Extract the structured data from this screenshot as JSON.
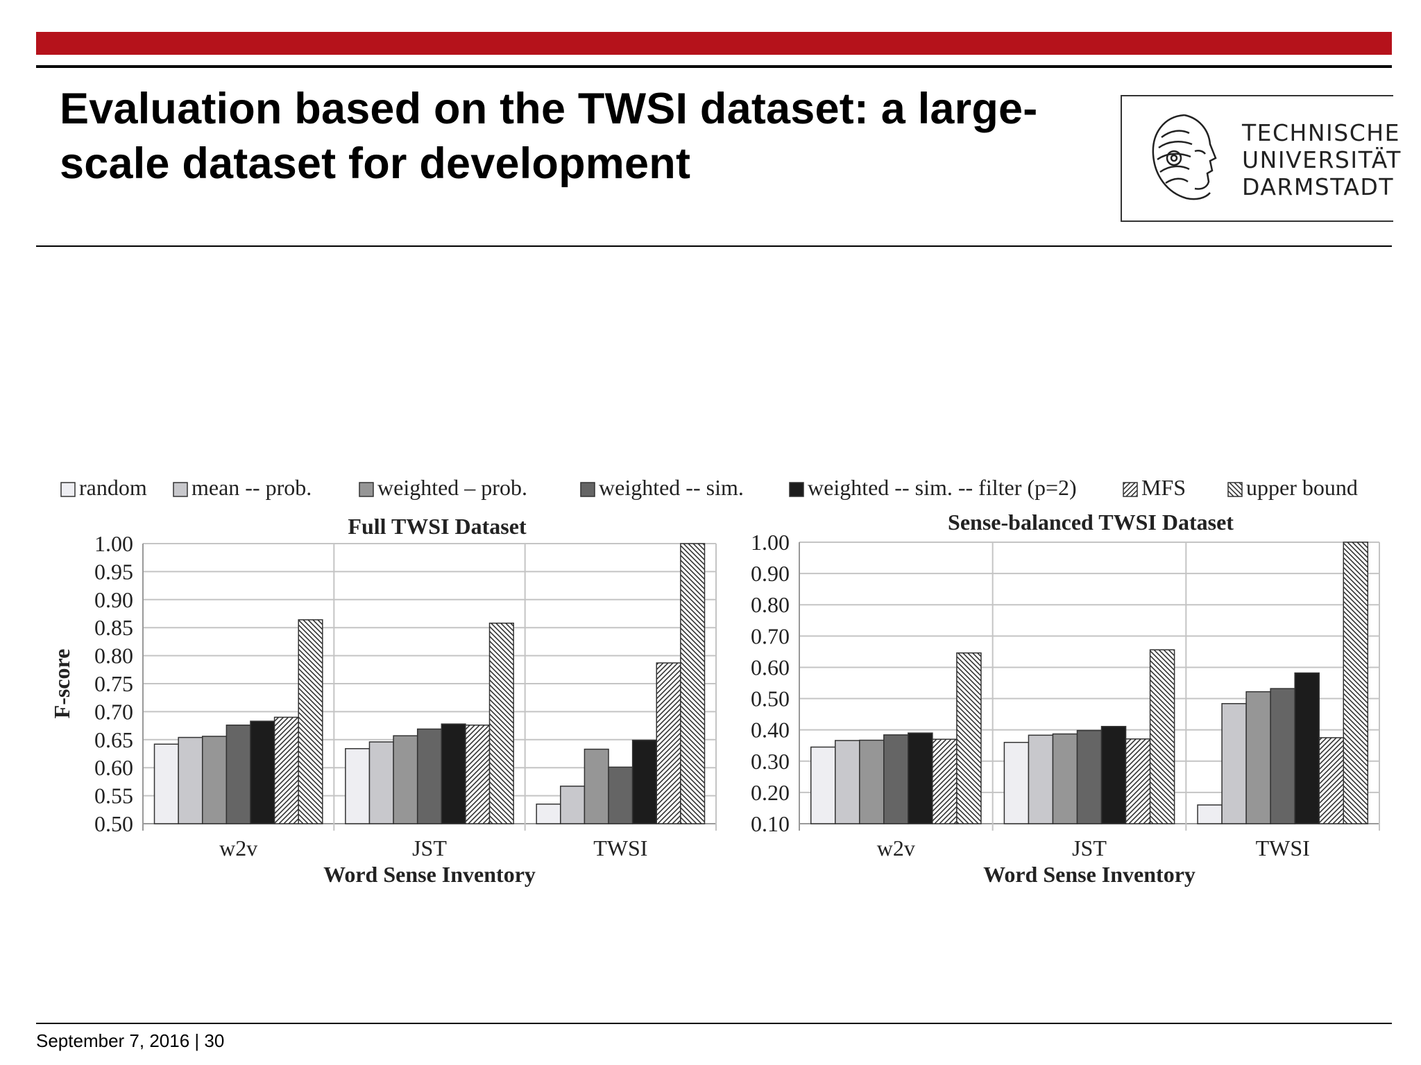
{
  "slide": {
    "title": "Evaluation based on the TWSI dataset: a large-scale dataset for development",
    "footer": "September 7, 2016 | 30",
    "accent_color": "#b5121b"
  },
  "logo": {
    "icon": "athena-head-icon",
    "lines": [
      "TECHNISCHE",
      "UNIVERSITÄT",
      "DARMSTADT"
    ]
  },
  "legend": {
    "entries": [
      {
        "label": "random",
        "fill": "#eeeef2",
        "pattern": "none"
      },
      {
        "label": "mean -- prob.",
        "fill": "#c8c8cc",
        "pattern": "none"
      },
      {
        "label": "weighted – prob.",
        "fill": "#969696",
        "pattern": "none"
      },
      {
        "label": "weighted -- sim.",
        "fill": "#656565",
        "pattern": "none"
      },
      {
        "label": "weighted -- sim. -- filter (p=2)",
        "fill": "#1c1c1c",
        "pattern": "none"
      },
      {
        "label": "MFS",
        "fill": "#ffffff",
        "pattern": "hatch-up"
      },
      {
        "label": "upper bound",
        "fill": "#ffffff",
        "pattern": "hatch-down"
      }
    ]
  },
  "chart_data": [
    {
      "type": "bar",
      "title": "Full TWSI Dataset",
      "xlabel": "Word Sense Inventory",
      "ylabel": "F-score",
      "categories": [
        "w2v",
        "JST",
        "TWSI"
      ],
      "ylim": [
        0.5,
        1.0
      ],
      "yticks": [
        "0.50",
        "0.55",
        "0.60",
        "0.65",
        "0.70",
        "0.75",
        "0.80",
        "0.85",
        "0.90",
        "0.95",
        "1.00"
      ],
      "grid": true,
      "series": [
        {
          "name": "random",
          "values": [
            0.642,
            0.634,
            0.535
          ]
        },
        {
          "name": "mean -- prob.",
          "values": [
            0.654,
            0.646,
            0.567
          ]
        },
        {
          "name": "weighted – prob.",
          "values": [
            0.656,
            0.657,
            0.633
          ]
        },
        {
          "name": "weighted -- sim.",
          "values": [
            0.676,
            0.669,
            0.601
          ]
        },
        {
          "name": "weighted -- sim. -- filter (p=2)",
          "values": [
            0.683,
            0.678,
            0.649
          ]
        },
        {
          "name": "MFS",
          "values": [
            0.69,
            0.676,
            0.787
          ]
        },
        {
          "name": "upper bound",
          "values": [
            0.864,
            0.858,
            1.0
          ]
        }
      ]
    },
    {
      "type": "bar",
      "title": "Sense-balanced TWSI Dataset",
      "xlabel": "Word Sense Inventory",
      "ylabel": "",
      "categories": [
        "w2v",
        "JST",
        "TWSI"
      ],
      "ylim": [
        0.1,
        1.0
      ],
      "yticks": [
        "0.10",
        "0.20",
        "0.30",
        "0.40",
        "0.50",
        "0.60",
        "0.70",
        "0.80",
        "0.90",
        "1.00"
      ],
      "grid": true,
      "series": [
        {
          "name": "random",
          "values": [
            0.345,
            0.36,
            0.16
          ]
        },
        {
          "name": "mean -- prob.",
          "values": [
            0.366,
            0.383,
            0.484
          ]
        },
        {
          "name": "weighted – prob.",
          "values": [
            0.367,
            0.387,
            0.522
          ]
        },
        {
          "name": "weighted -- sim.",
          "values": [
            0.384,
            0.398,
            0.532
          ]
        },
        {
          "name": "weighted -- sim. -- filter (p=2)",
          "values": [
            0.39,
            0.411,
            0.582
          ]
        },
        {
          "name": "MFS",
          "values": [
            0.37,
            0.371,
            0.375
          ]
        },
        {
          "name": "upper bound",
          "values": [
            0.646,
            0.656,
            1.0
          ]
        }
      ]
    }
  ]
}
